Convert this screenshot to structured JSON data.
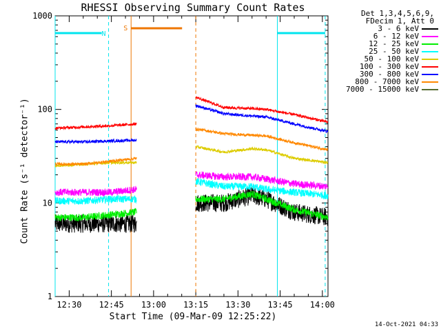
{
  "chart_data": {
    "type": "line",
    "title": "RHESSI Observing Summary Count Rates",
    "xlabel": "Start Time (09-Mar-09 12:25:22)",
    "ylabel": "Count Rate (s⁻¹ detector⁻¹)",
    "yscale": "log",
    "ylim": [
      1,
      1000
    ],
    "xlim": [
      "12:25",
      "14:02"
    ],
    "x_ticks": [
      "12:30",
      "12:45",
      "13:00",
      "13:15",
      "13:30",
      "13:45",
      "14:00"
    ],
    "y_ticks": [
      "1",
      "10",
      "100",
      "1000"
    ],
    "legend_header": [
      "Det 1,3,4,5,6,9,",
      "FDecim 1, Att 0"
    ],
    "timestamp": "14-Oct-2021 04:33",
    "markers": [
      {
        "label": "N",
        "color": "#00e5ee"
      },
      {
        "label": "S",
        "color": "#ee7600"
      }
    ],
    "night_intervals": [
      [
        "12:25",
        "12:44"
      ],
      [
        "13:44",
        "14:01"
      ]
    ],
    "saa_interval": [
      "12:52",
      "13:15"
    ],
    "data_gap": [
      "12:54",
      "13:15"
    ],
    "series": [
      {
        "name": "3 - 6 keV",
        "color": "#000000",
        "points": [
          [
            "12:25",
            6
          ],
          [
            "12:35",
            6
          ],
          [
            "12:45",
            6
          ],
          [
            "12:54",
            6
          ],
          [
            "13:15",
            10
          ],
          [
            "13:25",
            10
          ],
          [
            "13:35",
            12
          ],
          [
            "13:40",
            11
          ],
          [
            "13:50",
            8
          ],
          [
            "14:02",
            7
          ]
        ]
      },
      {
        "name": "6 - 12 keV",
        "color": "#ff00ff",
        "points": [
          [
            "12:25",
            13
          ],
          [
            "12:35",
            13
          ],
          [
            "12:45",
            13
          ],
          [
            "12:54",
            14
          ],
          [
            "13:15",
            20
          ],
          [
            "13:25",
            19
          ],
          [
            "13:35",
            19
          ],
          [
            "13:40",
            18
          ],
          [
            "13:50",
            16
          ],
          [
            "14:02",
            15
          ]
        ]
      },
      {
        "name": "12 - 25 keV",
        "color": "#00ee00",
        "points": [
          [
            "12:25",
            7
          ],
          [
            "12:35",
            7
          ],
          [
            "12:45",
            7.5
          ],
          [
            "12:54",
            8
          ],
          [
            "13:15",
            11
          ],
          [
            "13:25",
            11
          ],
          [
            "13:35",
            12.5
          ],
          [
            "13:40",
            11
          ],
          [
            "13:50",
            8.5
          ],
          [
            "14:02",
            7
          ]
        ]
      },
      {
        "name": "25 - 50 keV",
        "color": "#00ffff",
        "points": [
          [
            "12:25",
            10.5
          ],
          [
            "12:35",
            10.5
          ],
          [
            "12:45",
            11
          ],
          [
            "12:54",
            11
          ],
          [
            "13:15",
            17
          ],
          [
            "13:25",
            15
          ],
          [
            "13:35",
            15
          ],
          [
            "13:40",
            14
          ],
          [
            "13:50",
            13
          ],
          [
            "14:02",
            12
          ]
        ]
      },
      {
        "name": "50 - 100 keV",
        "color": "#ddcc00",
        "points": [
          [
            "12:25",
            25
          ],
          [
            "12:35",
            26
          ],
          [
            "12:45",
            27
          ],
          [
            "12:54",
            27
          ],
          [
            "13:15",
            40
          ],
          [
            "13:25",
            35
          ],
          [
            "13:35",
            38
          ],
          [
            "13:40",
            37
          ],
          [
            "13:50",
            30
          ],
          [
            "14:02",
            27
          ]
        ]
      },
      {
        "name": "100 - 300 keV",
        "color": "#ff0000",
        "points": [
          [
            "12:25",
            63
          ],
          [
            "12:35",
            65
          ],
          [
            "12:45",
            67
          ],
          [
            "12:54",
            70
          ],
          [
            "13:15",
            135
          ],
          [
            "13:25",
            105
          ],
          [
            "13:35",
            102
          ],
          [
            "13:40",
            100
          ],
          [
            "13:50",
            88
          ],
          [
            "14:02",
            73
          ]
        ]
      },
      {
        "name": "300 - 800 keV",
        "color": "#0000ff",
        "points": [
          [
            "12:25",
            45
          ],
          [
            "12:35",
            45
          ],
          [
            "12:45",
            46
          ],
          [
            "12:54",
            47
          ],
          [
            "13:15",
            110
          ],
          [
            "13:25",
            90
          ],
          [
            "13:35",
            85
          ],
          [
            "13:40",
            83
          ],
          [
            "13:50",
            70
          ],
          [
            "14:02",
            58
          ]
        ]
      },
      {
        "name": "800 - 7000 keV",
        "color": "#ff8800",
        "points": [
          [
            "12:25",
            26
          ],
          [
            "12:35",
            26
          ],
          [
            "12:45",
            28
          ],
          [
            "12:54",
            30
          ],
          [
            "13:15",
            62
          ],
          [
            "13:25",
            55
          ],
          [
            "13:35",
            53
          ],
          [
            "13:40",
            52
          ],
          [
            "13:50",
            44
          ],
          [
            "14:02",
            37
          ]
        ]
      },
      {
        "name": "7000 - 15000 keV",
        "color": "#556b2f",
        "points": []
      }
    ]
  }
}
